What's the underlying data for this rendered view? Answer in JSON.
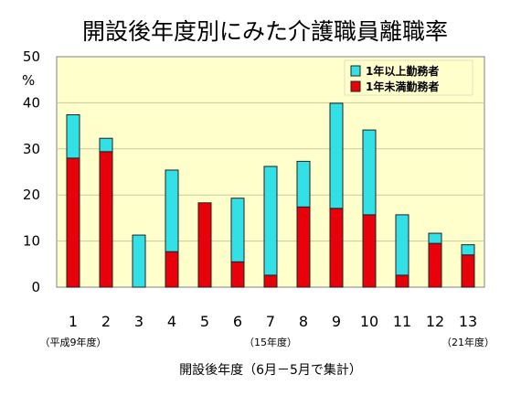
{
  "chart_data": {
    "type": "bar",
    "stacked": true,
    "title": "開設後年度別にみた介護職員離職率",
    "ylabel": "%",
    "xlabel": "開設後年度（6月－5月で集計）",
    "ylim": [
      0,
      50
    ],
    "yticks": [
      0,
      10,
      20,
      30,
      40,
      50
    ],
    "categories": [
      "1",
      "2",
      "3",
      "4",
      "5",
      "6",
      "7",
      "8",
      "9",
      "10",
      "11",
      "12",
      "13"
    ],
    "category_notes": [
      {
        "category": "1",
        "text": "（平成9年度）"
      },
      {
        "category": "7",
        "text": "（15年度）"
      },
      {
        "category": "13",
        "text": "（21年度）"
      }
    ],
    "series": [
      {
        "name": "1年未満勤務者",
        "color": "#e8000b",
        "values": [
          28.0,
          29.4,
          0.0,
          7.7,
          18.3,
          5.5,
          2.6,
          17.4,
          17.1,
          15.7,
          2.6,
          9.5,
          7.0
        ]
      },
      {
        "name": "1年以上勤務者",
        "color": "#33e0e6",
        "values": [
          9.4,
          2.9,
          11.3,
          17.7,
          0.0,
          13.8,
          23.6,
          9.9,
          22.8,
          18.4,
          13.1,
          2.2,
          2.2
        ]
      }
    ],
    "legend_position": "top-right",
    "grid": true,
    "plot_background": "#ffffcc"
  }
}
